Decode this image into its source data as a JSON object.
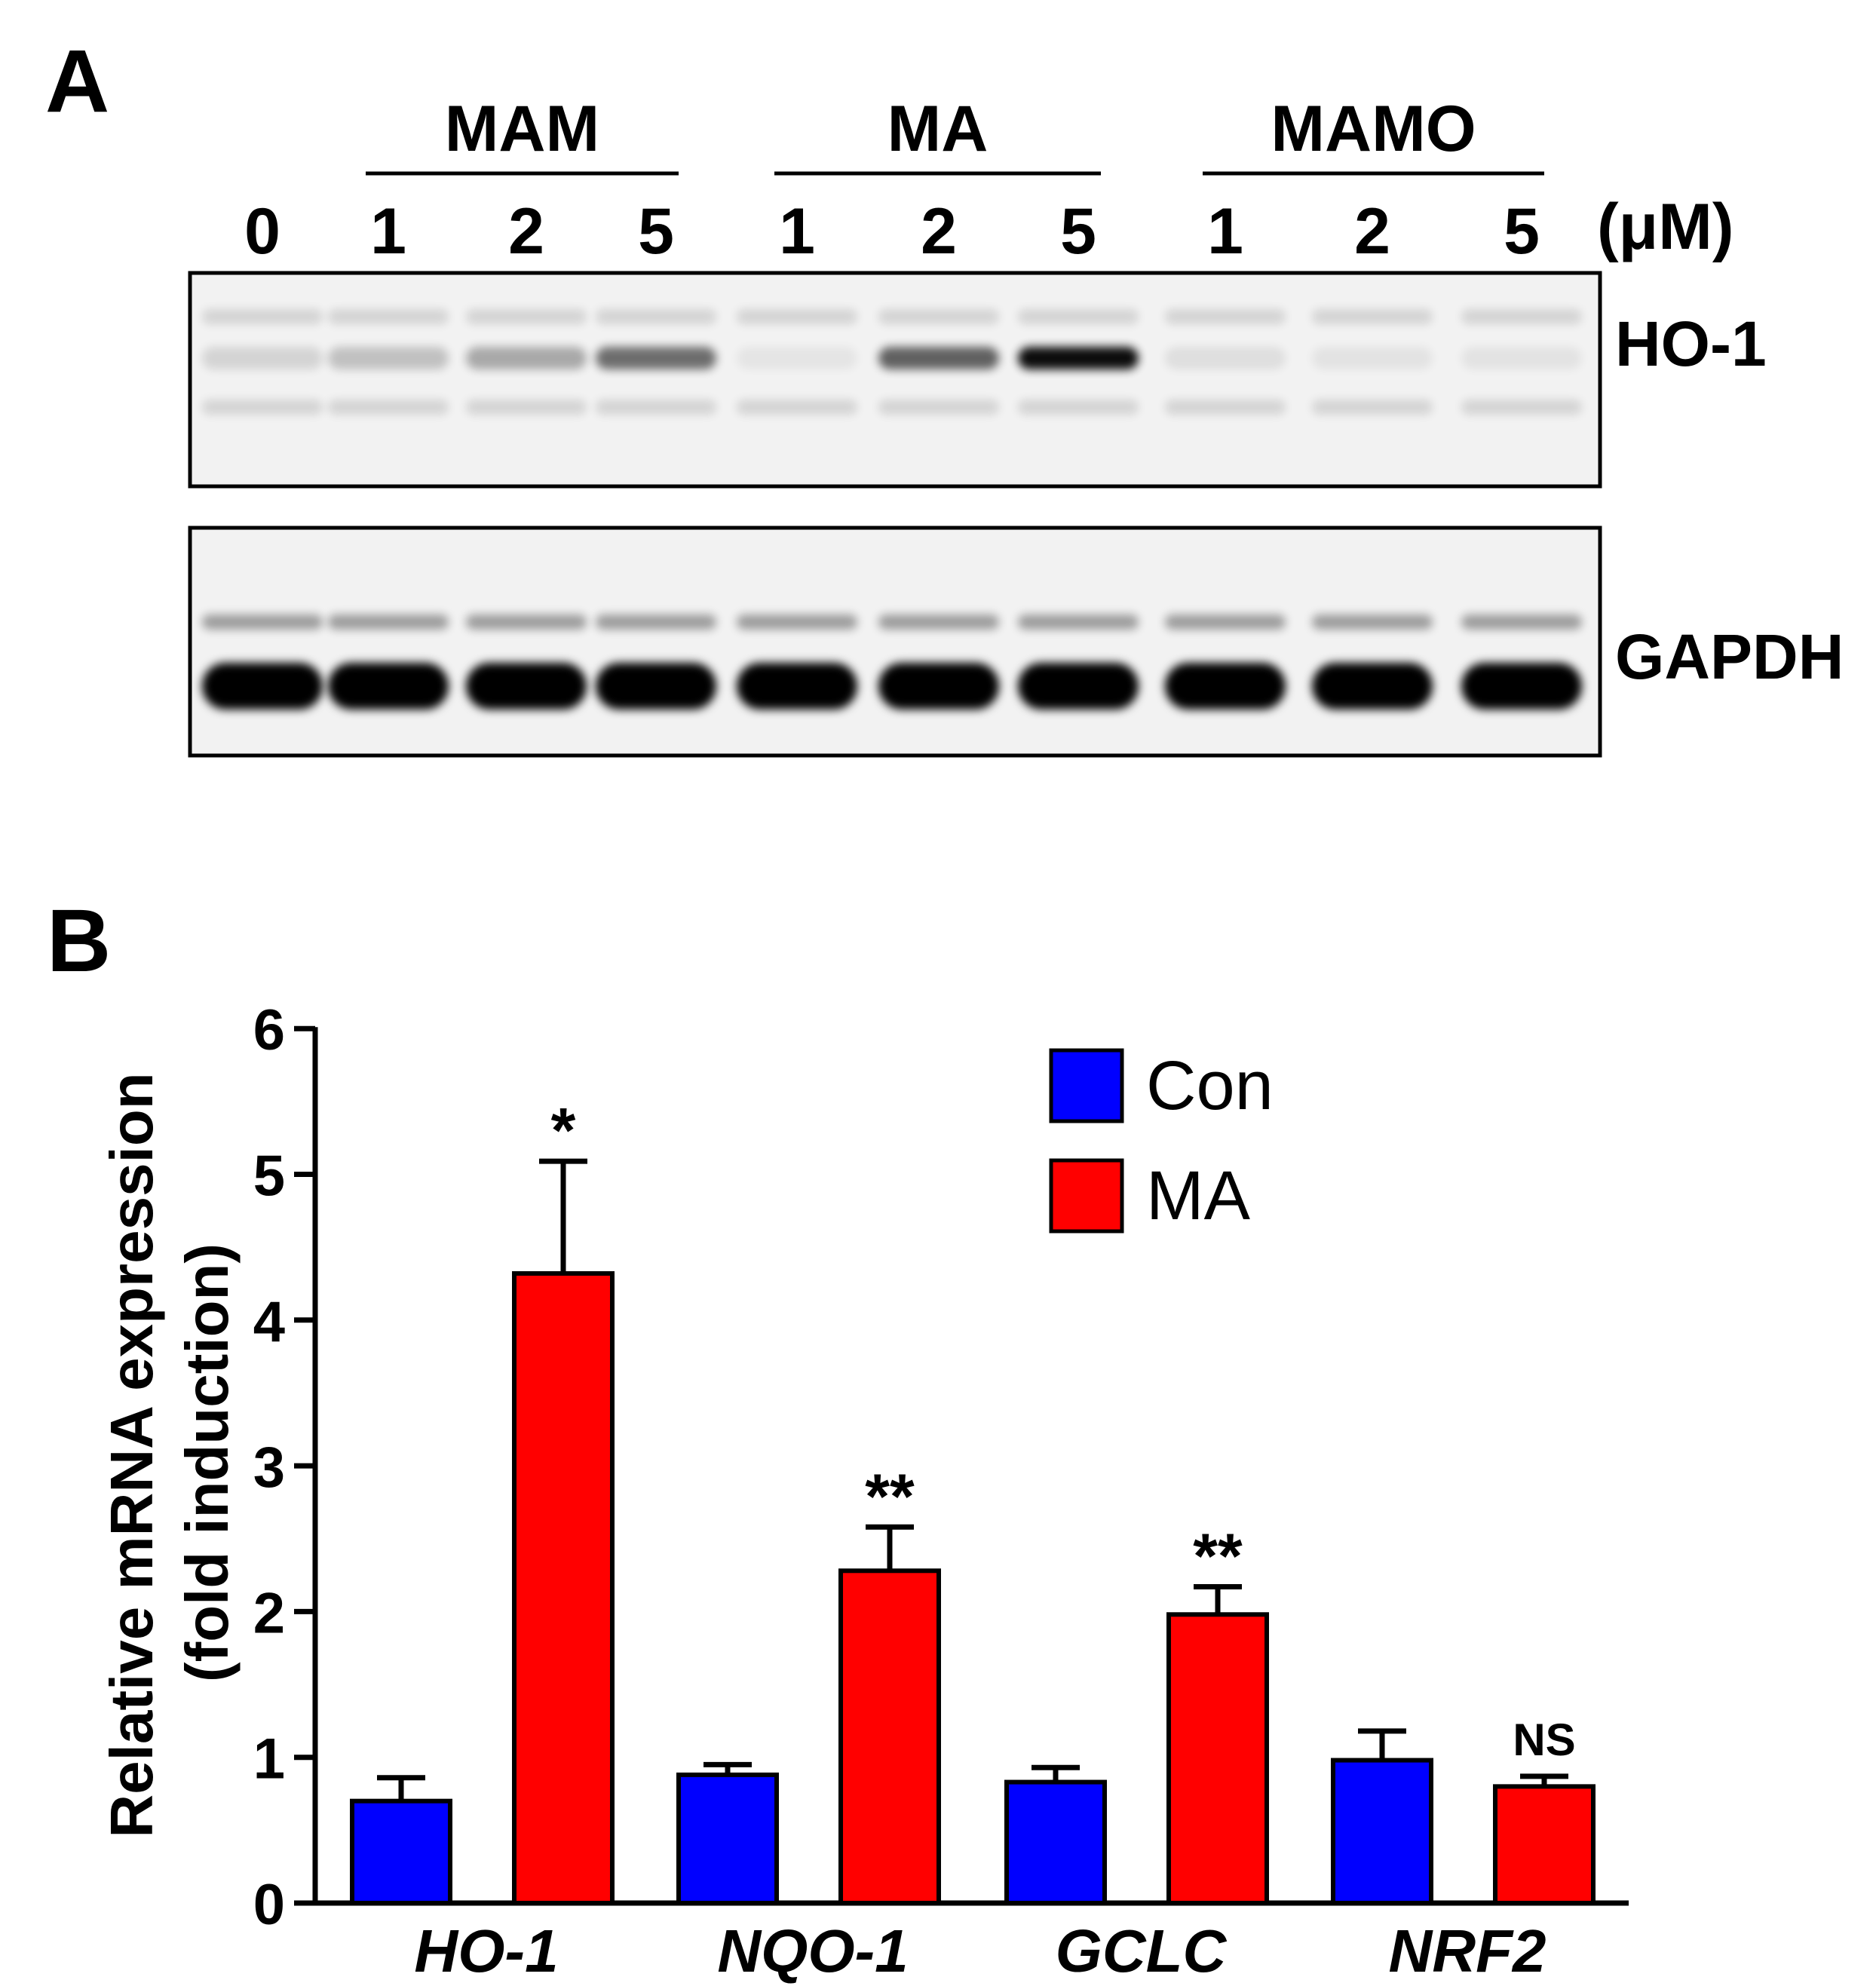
{
  "panel_a": {
    "label": "A",
    "groups": [
      {
        "name": "MAM",
        "lanes": [
          "1",
          "2",
          "5"
        ]
      },
      {
        "name": "MA",
        "lanes": [
          "1",
          "2",
          "5"
        ]
      },
      {
        "name": "MAMO",
        "lanes": [
          "1",
          "2",
          "5"
        ]
      }
    ],
    "control_lane": "0",
    "unit": "(μM)",
    "blots": [
      {
        "name": "HO-1",
        "intensities": [
          0.12,
          0.2,
          0.3,
          0.55,
          0.05,
          0.6,
          0.95,
          0.08,
          0.06,
          0.06
        ]
      },
      {
        "name": "GAPDH",
        "intensities": [
          1,
          1,
          1,
          1,
          1,
          1,
          1,
          1,
          1,
          1
        ]
      }
    ]
  },
  "panel_b": {
    "label": "B",
    "legend": [
      {
        "name": "Con",
        "color": "#0000ff"
      },
      {
        "name": "MA",
        "color": "#ff0000"
      }
    ]
  },
  "chart_data": {
    "type": "bar",
    "categories": [
      "HO-1",
      "NQO-1",
      "GCLC",
      "NRF2"
    ],
    "series": [
      {
        "name": "Con",
        "color": "#0000ff",
        "values": [
          0.7,
          0.88,
          0.83,
          0.98
        ],
        "errors": [
          0.16,
          0.07,
          0.1,
          0.2
        ]
      },
      {
        "name": "MA",
        "color": "#ff0000",
        "values": [
          4.32,
          2.28,
          1.98,
          0.8
        ],
        "errors": [
          0.77,
          0.3,
          0.19,
          0.07
        ]
      }
    ],
    "annotations": [
      "*",
      "**",
      "**",
      "NS"
    ],
    "ylabel_line1": "Relative mRNA expression",
    "ylabel_line2": "(fold induction)",
    "yticks": [
      "0",
      "1",
      "2",
      "3",
      "4",
      "5",
      "6"
    ],
    "ylim": [
      0,
      6
    ],
    "grid": false,
    "legend_position": "top-right"
  }
}
